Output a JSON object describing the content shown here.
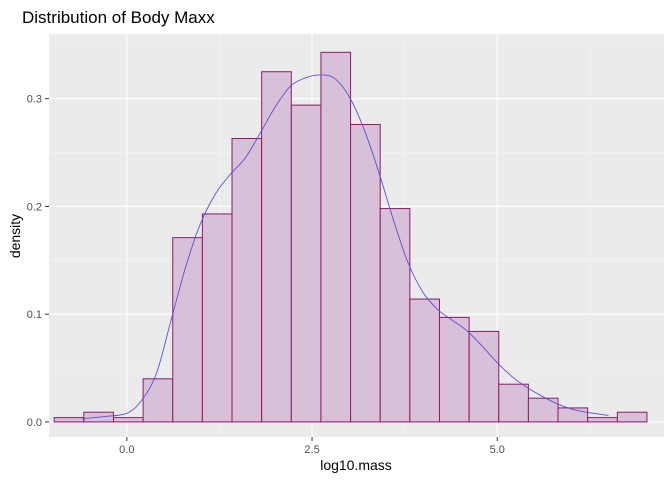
{
  "chart_data": {
    "type": "histogram",
    "title": "Distribution of Body Maxx",
    "xlabel": "log10.mass",
    "ylabel": "density",
    "xlim": [
      -1.05,
      7.25
    ],
    "ylim": [
      -0.014,
      0.36
    ],
    "grid": true,
    "x_ticks": [
      0.0,
      2.5,
      5.0
    ],
    "x_tick_labels": [
      "0.0",
      "2.5",
      "5.0"
    ],
    "y_ticks": [
      0.0,
      0.1,
      0.2,
      0.3
    ],
    "y_tick_labels": [
      "0.0",
      "0.1",
      "0.2",
      "0.3"
    ],
    "bin_width": 0.4,
    "bins": [
      {
        "x0": -0.98,
        "x1": -0.58,
        "density": 0.004
      },
      {
        "x0": -0.58,
        "x1": -0.18,
        "density": 0.009
      },
      {
        "x0": -0.18,
        "x1": 0.22,
        "density": 0.004
      },
      {
        "x0": 0.22,
        "x1": 0.62,
        "density": 0.04
      },
      {
        "x0": 0.62,
        "x1": 1.02,
        "density": 0.171
      },
      {
        "x0": 1.02,
        "x1": 1.42,
        "density": 0.193
      },
      {
        "x0": 1.42,
        "x1": 1.82,
        "density": 0.263
      },
      {
        "x0": 1.82,
        "x1": 2.22,
        "density": 0.325
      },
      {
        "x0": 2.22,
        "x1": 2.62,
        "density": 0.294
      },
      {
        "x0": 2.62,
        "x1": 3.02,
        "density": 0.343
      },
      {
        "x0": 3.02,
        "x1": 3.42,
        "density": 0.276
      },
      {
        "x0": 3.42,
        "x1": 3.82,
        "density": 0.198
      },
      {
        "x0": 3.82,
        "x1": 4.22,
        "density": 0.114
      },
      {
        "x0": 4.22,
        "x1": 4.62,
        "density": 0.097
      },
      {
        "x0": 4.62,
        "x1": 5.02,
        "density": 0.084
      },
      {
        "x0": 5.02,
        "x1": 5.42,
        "density": 0.035
      },
      {
        "x0": 5.42,
        "x1": 5.82,
        "density": 0.022
      },
      {
        "x0": 5.82,
        "x1": 6.22,
        "density": 0.013
      },
      {
        "x0": 6.22,
        "x1": 6.62,
        "density": 0.004
      },
      {
        "x0": 6.62,
        "x1": 7.02,
        "density": 0.009
      }
    ],
    "density_curve": [
      [
        -0.6,
        0.003
      ],
      [
        -0.3,
        0.005
      ],
      [
        0.0,
        0.008
      ],
      [
        0.2,
        0.02
      ],
      [
        0.4,
        0.045
      ],
      [
        0.6,
        0.095
      ],
      [
        0.8,
        0.145
      ],
      [
        1.0,
        0.185
      ],
      [
        1.2,
        0.212
      ],
      [
        1.4,
        0.23
      ],
      [
        1.6,
        0.245
      ],
      [
        1.8,
        0.268
      ],
      [
        2.0,
        0.292
      ],
      [
        2.2,
        0.311
      ],
      [
        2.4,
        0.319
      ],
      [
        2.6,
        0.322
      ],
      [
        2.8,
        0.319
      ],
      [
        3.0,
        0.302
      ],
      [
        3.2,
        0.272
      ],
      [
        3.4,
        0.232
      ],
      [
        3.6,
        0.187
      ],
      [
        3.8,
        0.147
      ],
      [
        4.0,
        0.12
      ],
      [
        4.2,
        0.104
      ],
      [
        4.4,
        0.094
      ],
      [
        4.6,
        0.084
      ],
      [
        4.8,
        0.07
      ],
      [
        5.0,
        0.055
      ],
      [
        5.2,
        0.042
      ],
      [
        5.4,
        0.032
      ],
      [
        5.6,
        0.024
      ],
      [
        5.8,
        0.017
      ],
      [
        6.0,
        0.012
      ],
      [
        6.2,
        0.009
      ],
      [
        6.5,
        0.006
      ]
    ],
    "colors": {
      "bar_fill": "#d8c0d8",
      "bar_stroke": "#8b1a6b",
      "density_line": "#5b4fd6",
      "panel_bg": "#ebebeb",
      "grid_major": "#ffffff",
      "grid_minor": "#f5f5f5",
      "tick_text": "#4d4d4d"
    }
  }
}
